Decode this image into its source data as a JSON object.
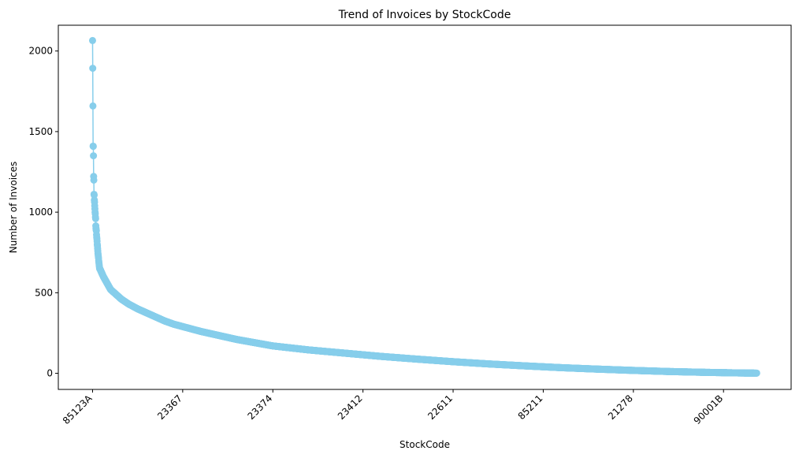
{
  "chart_data": {
    "type": "line",
    "title": "Trend of Invoices by StockCode",
    "xlabel": "StockCode",
    "ylabel": "Number of Invoices",
    "ylim": [
      -100,
      2160
    ],
    "yticks": [
      0,
      500,
      1000,
      1500,
      2000
    ],
    "xtick_labels": [
      "85123A",
      "23367",
      "23374",
      "23412",
      "22611",
      "85211",
      "21278",
      "90001B"
    ],
    "xtick_positions": [
      0,
      500,
      1000,
      1500,
      2000,
      2500,
      3000,
      3500
    ],
    "n_points": 3685,
    "x_range": [
      -190,
      3875
    ],
    "series": [
      {
        "values_first": [
          2065,
          1893,
          1659,
          1410,
          1408,
          1350,
          1222,
          1199,
          1111,
          1106,
          1075,
          1062,
          1040,
          1020,
          1000,
          990,
          970,
          960,
          915,
          900,
          890,
          885,
          860,
          845,
          835,
          820,
          800,
          790,
          775,
          760,
          745,
          735,
          725,
          715,
          700,
          690,
          680,
          670,
          660,
          650
        ],
        "curve": [
          [
            40,
            650
          ],
          [
            60,
            600
          ],
          [
            80,
            560
          ],
          [
            100,
            520
          ],
          [
            130,
            490
          ],
          [
            160,
            460
          ],
          [
            200,
            430
          ],
          [
            250,
            400
          ],
          [
            300,
            375
          ],
          [
            350,
            350
          ],
          [
            400,
            325
          ],
          [
            450,
            305
          ],
          [
            500,
            290
          ],
          [
            600,
            260
          ],
          [
            700,
            235
          ],
          [
            800,
            210
          ],
          [
            900,
            190
          ],
          [
            1000,
            170
          ],
          [
            1200,
            145
          ],
          [
            1400,
            125
          ],
          [
            1600,
            105
          ],
          [
            1800,
            88
          ],
          [
            2000,
            72
          ],
          [
            2200,
            58
          ],
          [
            2400,
            46
          ],
          [
            2600,
            35
          ],
          [
            2800,
            26
          ],
          [
            3000,
            18
          ],
          [
            3200,
            11
          ],
          [
            3400,
            6
          ],
          [
            3600,
            2
          ],
          [
            3684,
            1
          ]
        ],
        "color": "#87ceeb"
      }
    ]
  }
}
